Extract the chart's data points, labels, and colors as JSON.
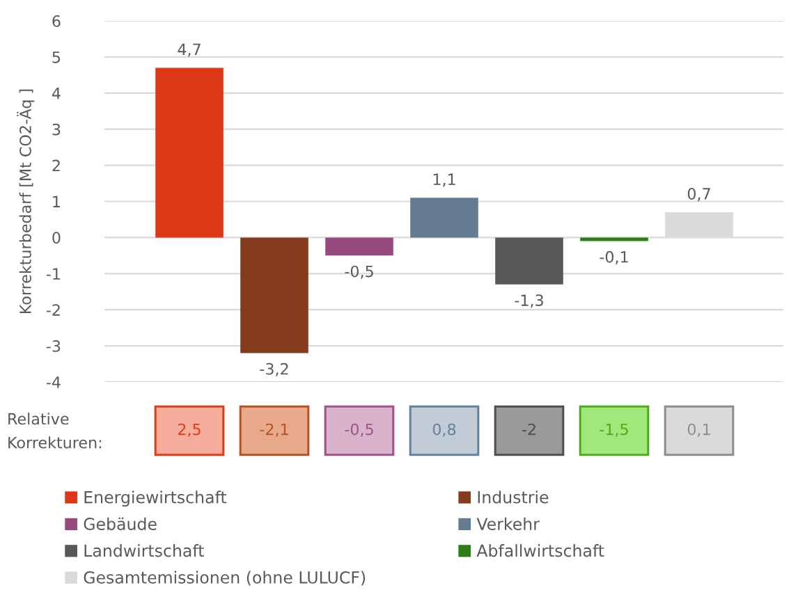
{
  "chart_data": [
    {
      "type": "bar",
      "ylabel": "Korrekturbedarf [Mt CO2-Äq ]",
      "categories": [
        null,
        null,
        null,
        null,
        null,
        null,
        null
      ],
      "series": [
        {
          "name": "Energiewirtschaft",
          "color": "#dd3716",
          "values": [
            4.7,
            null,
            null,
            null,
            null,
            null,
            null
          ],
          "value_labels": [
            "4,7",
            null,
            null,
            null,
            null,
            null,
            null
          ]
        },
        {
          "name": "Industrie",
          "color": "#843c1c",
          "values": [
            null,
            -3.2,
            null,
            null,
            null,
            null,
            null
          ],
          "value_labels": [
            null,
            "-3,2",
            null,
            null,
            null,
            null,
            null
          ]
        },
        {
          "name": "Gebäude",
          "color": "#984a7f",
          "values": [
            null,
            null,
            -0.5,
            null,
            null,
            null,
            null
          ],
          "value_labels": [
            null,
            null,
            "-0,5",
            null,
            null,
            null,
            null
          ]
        },
        {
          "name": "Verkehr",
          "color": "#657b92",
          "values": [
            null,
            null,
            null,
            1.1,
            null,
            null,
            null
          ],
          "value_labels": [
            null,
            null,
            null,
            "1,1",
            null,
            null,
            null
          ]
        },
        {
          "name": "Landwirtschaft",
          "color": "#575757",
          "values": [
            null,
            null,
            null,
            null,
            -1.3,
            null,
            null
          ],
          "value_labels": [
            null,
            null,
            null,
            null,
            "-1,3",
            null,
            null
          ]
        },
        {
          "name": "Abfallwirtschaft",
          "color": "#2e7d18",
          "values": [
            null,
            null,
            null,
            null,
            null,
            -0.1,
            null
          ],
          "value_labels": [
            null,
            null,
            null,
            null,
            null,
            "-0,1",
            null
          ]
        },
        {
          "name": "Gesamtemissionen (ohne LULUCF)",
          "color": "#dadada",
          "values": [
            null,
            null,
            null,
            null,
            null,
            null,
            0.7
          ],
          "value_labels": [
            null,
            null,
            null,
            null,
            null,
            null,
            "0,7"
          ]
        }
      ],
      "ylim": [
        -4,
        6
      ],
      "yticks": [
        -4,
        -3,
        -2,
        -1,
        0,
        1,
        2,
        3,
        4,
        5,
        6
      ],
      "grid": "y",
      "legend": "bottom",
      "tick_labels": "y"
    },
    {
      "type": "other",
      "title": "Relative\nKorrekturen:",
      "annotations": [
        "2,5",
        "-2,1",
        "-0,5",
        "0,8",
        "-2",
        "-1,5",
        "0,1"
      ],
      "colors": [
        "#f5ad9d",
        "#e8a98b",
        "#d9b2cc",
        "#c1ccd6",
        "#9a9a9a",
        "#a0e87a",
        "#dadada"
      ]
    }
  ]
}
